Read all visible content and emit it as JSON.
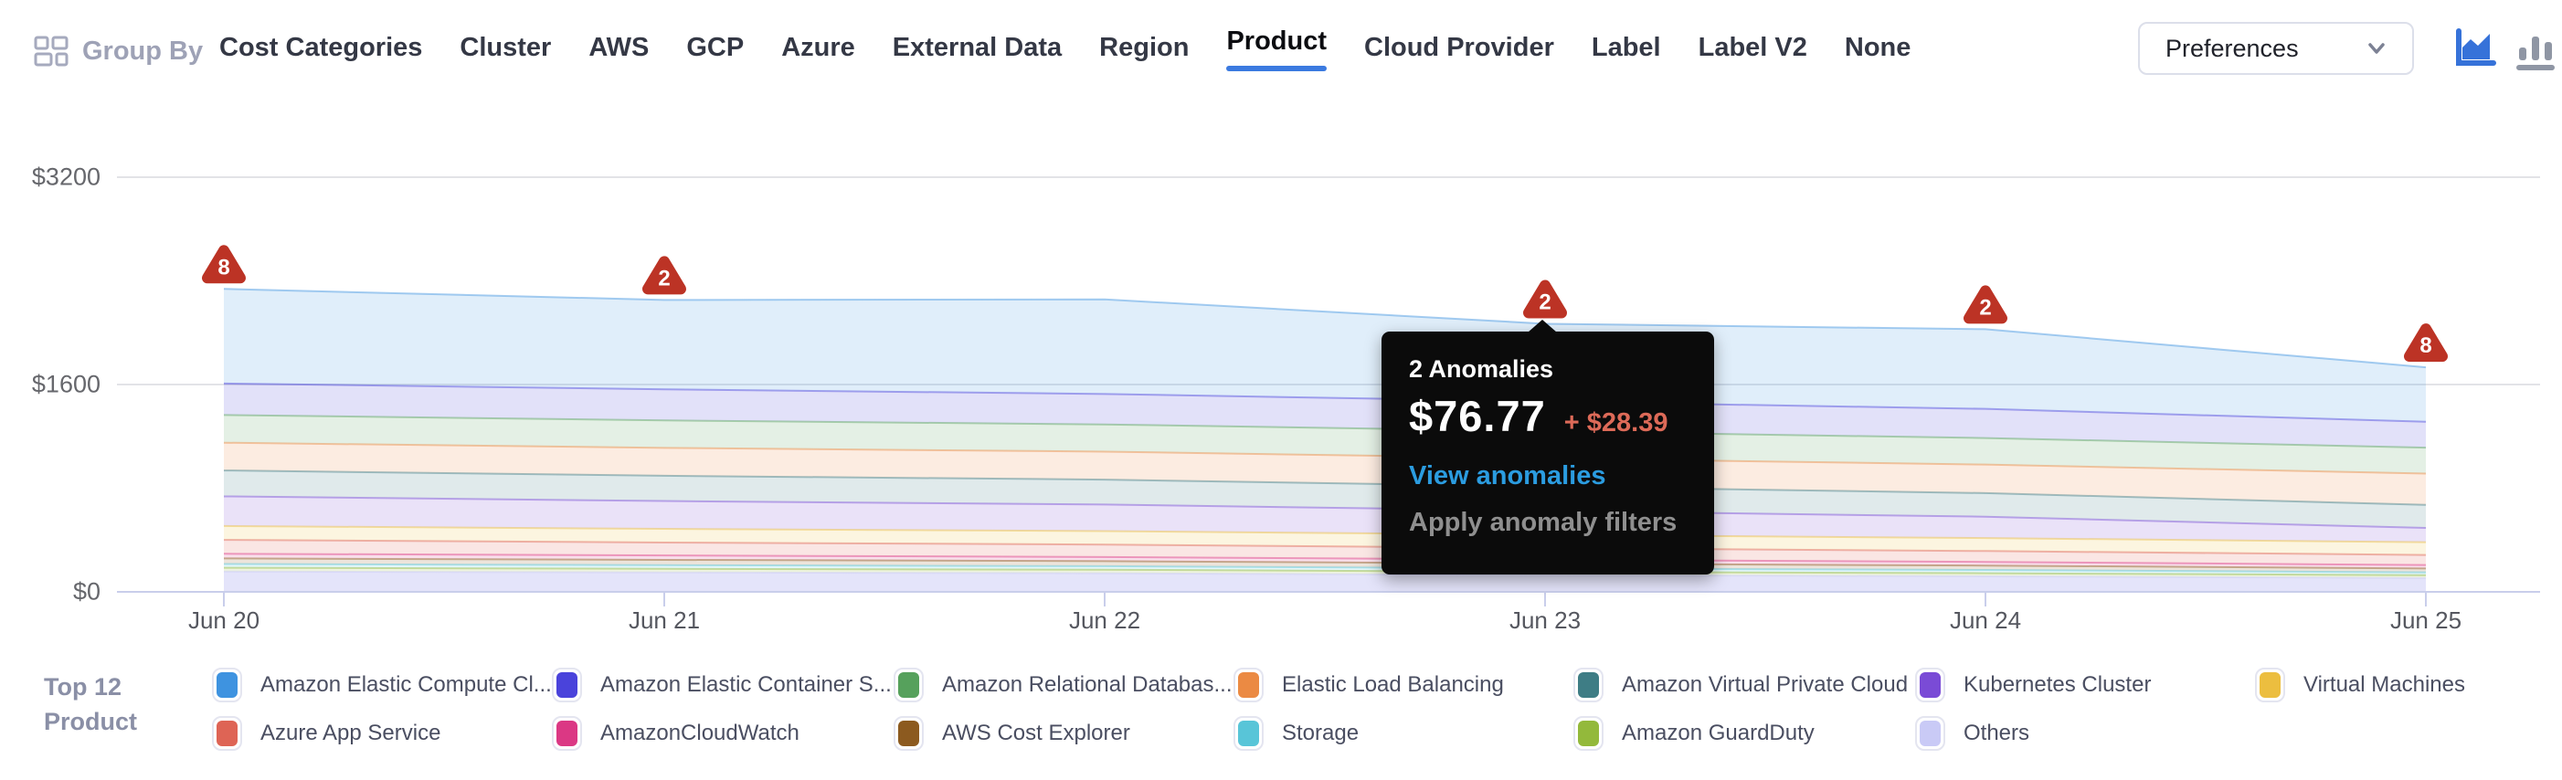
{
  "header": {
    "group_by_label": "Group By",
    "tabs": [
      {
        "label": "Cost Categories",
        "active": false
      },
      {
        "label": "Cluster",
        "active": false
      },
      {
        "label": "AWS",
        "active": false
      },
      {
        "label": "GCP",
        "active": false
      },
      {
        "label": "Azure",
        "active": false
      },
      {
        "label": "External Data",
        "active": false
      },
      {
        "label": "Region",
        "active": false
      },
      {
        "label": "Product",
        "active": true
      },
      {
        "label": "Cloud Provider",
        "active": false
      },
      {
        "label": "Label",
        "active": false
      },
      {
        "label": "Label V2",
        "active": false
      },
      {
        "label": "None",
        "active": false
      }
    ],
    "preferences_label": "Preferences",
    "chart_type_toggle": {
      "active": "area-chart",
      "options": [
        "area-chart",
        "bar-chart"
      ]
    }
  },
  "chart_data": {
    "type": "area",
    "stacked": true,
    "grid": true,
    "legend_position": "bottom",
    "x": [
      "Jun 20",
      "Jun 21",
      "Jun 22",
      "Jun 23",
      "Jun 24",
      "Jun 25"
    ],
    "y_ticks": [
      {
        "label": "$0",
        "value": 0
      },
      {
        "label": "$1600",
        "value": 1600
      },
      {
        "label": "$3200",
        "value": 3200
      }
    ],
    "ylim": [
      0,
      3200
    ],
    "series": [
      {
        "label": "Amazon Elastic Compute Cl...",
        "color": "#3E93E0",
        "values": [
          730,
          690,
          730,
          600,
          615,
          420
        ]
      },
      {
        "label": "Amazon Elastic Container S...",
        "color": "#4A43DB",
        "values": [
          243,
          240,
          235,
          230,
          225,
          200
        ]
      },
      {
        "label": "Amazon Relational Databas...",
        "color": "#56A15C",
        "values": [
          214,
          212,
          210,
          208,
          205,
          200
        ]
      },
      {
        "label": "Elastic Load Balancing",
        "color": "#EB8A43",
        "values": [
          214,
          215,
          216,
          218,
          220,
          242
        ]
      },
      {
        "label": "Amazon Virtual Private Cloud",
        "color": "#3E7D85",
        "values": [
          200,
          195,
          192,
          188,
          182,
          178
        ]
      },
      {
        "label": "Kubernetes Cluster",
        "color": "#7A4BD6",
        "values": [
          229,
          215,
          205,
          185,
          165,
          110
        ]
      },
      {
        "label": "Virtual Machines",
        "color": "#ECBE3F",
        "values": [
          107,
          105,
          104,
          102,
          100,
          98
        ]
      },
      {
        "label": "Azure App Service",
        "color": "#DE6455",
        "values": [
          107,
          100,
          96,
          90,
          84,
          78
        ]
      },
      {
        "label": "AmazonCloudWatch",
        "color": "#DB3884",
        "values": [
          36,
          34,
          32,
          30,
          28,
          26
        ]
      },
      {
        "label": "AWS Cost Explorer",
        "color": "#8C5A1F",
        "values": [
          43,
          41,
          39,
          37,
          34,
          30
        ]
      },
      {
        "label": "Storage",
        "color": "#58C5D8",
        "values": [
          29,
          28,
          27,
          26,
          25,
          22
        ]
      },
      {
        "label": "Amazon GuardDuty",
        "color": "#93B93B",
        "values": [
          29,
          28,
          27,
          25,
          24,
          22
        ]
      },
      {
        "label": "Others",
        "color": "#C9CAF6",
        "values": [
          157,
          150,
          144,
          130,
          120,
          107
        ]
      }
    ],
    "anomalies": [
      {
        "x": "Jun 20",
        "count": 8
      },
      {
        "x": "Jun 21",
        "count": 2
      },
      {
        "x": "Jun 23",
        "count": 2
      },
      {
        "x": "Jun 24",
        "count": 2
      },
      {
        "x": "Jun 25",
        "count": 8
      }
    ]
  },
  "tooltip": {
    "title": "2 Anomalies",
    "value": "$76.77",
    "delta": "+ $28.39",
    "link_label": "View anomalies",
    "action_label": "Apply anomaly filters"
  },
  "legend": {
    "title_line1": "Top 12",
    "title_line2": "Product"
  },
  "colors": {
    "anomaly_red": "#BC3325",
    "active_tab_underline": "#3B7AE0",
    "tooltip_link_blue": "#2B9CE0",
    "tooltip_delta_red": "#DD6A58",
    "gridline": "#E2E3E7",
    "axis_line": "#C9CEEB",
    "icon_active_blue": "#3672D9",
    "icon_inactive_gray": "#8F96A4"
  }
}
